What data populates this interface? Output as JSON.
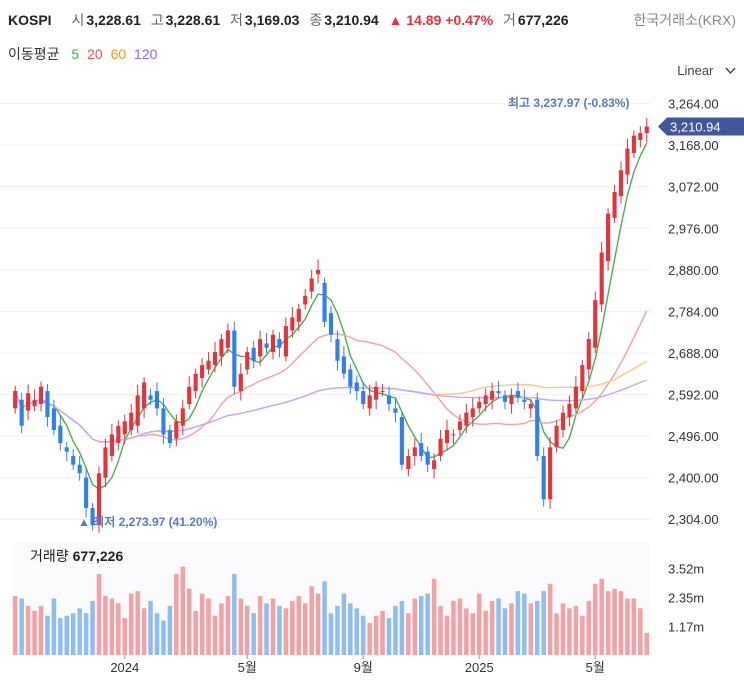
{
  "header": {
    "symbol": "KOSPI",
    "open_label": "시",
    "open": "3,228.61",
    "high_label": "고",
    "high": "3,228.61",
    "low_label": "저",
    "low": "3,169.03",
    "close_label": "종",
    "close": "3,210.94",
    "change": "▲ 14.89 +0.47%",
    "volume_label": "거",
    "volume": "677,226",
    "exchange": "한국거래소(KRX)"
  },
  "moving_average": {
    "label": "이동평균",
    "periods": [
      {
        "text": "5",
        "color": "#4caf50"
      },
      {
        "text": "20",
        "color": "#ef5350"
      },
      {
        "text": "60",
        "color": "#ff9800"
      },
      {
        "text": "120",
        "color": "#9c5ff7"
      }
    ]
  },
  "scale_mode": "Linear",
  "chart_data": {
    "type": "candlestick",
    "price_ticks": [
      "3,264.00",
      "3,168.00",
      "3,072.00",
      "2,976.00",
      "2,880.00",
      "2,784.00",
      "2,688.00",
      "2,592.00",
      "2,496.00",
      "2,400.00",
      "2,304.00"
    ],
    "price_tick_values": [
      3264,
      3168,
      3072,
      2976,
      2880,
      2784,
      2688,
      2592,
      2496,
      2400,
      2304
    ],
    "ylim": [
      2256,
      3300
    ],
    "current_price_label": "3,210.94",
    "current_price": 3210.94,
    "high_marker": "최고 3,237.97 (-0.83%)",
    "low_marker": "▲ 최저 2,273.97 (41.20%)",
    "x_labels": [
      "2024",
      "5월",
      "9월",
      "2025",
      "5월"
    ],
    "x_label_index": [
      17,
      36,
      54,
      72,
      90
    ],
    "candles_o": [
      2560,
      2580,
      2555,
      2565,
      2570,
      2600,
      2560,
      2520,
      2470,
      2450,
      2430,
      2400,
      2330,
      2290,
      2400,
      2450,
      2480,
      2500,
      2510,
      2520,
      2560,
      2590,
      2600,
      2560,
      2510,
      2490,
      2520,
      2570,
      2600,
      2630,
      2650,
      2660,
      2680,
      2700,
      2740,
      2600,
      2650,
      2700,
      2680,
      2710,
      2690,
      2720,
      2680,
      2740,
      2760,
      2800,
      2830,
      2870,
      2850,
      2780,
      2720,
      2680,
      2650,
      2620,
      2600,
      2560,
      2580,
      2600,
      2590,
      2560,
      2540,
      2420,
      2450,
      2480,
      2460,
      2420,
      2450,
      2480,
      2500,
      2510,
      2520,
      2540,
      2560,
      2570,
      2580,
      2600,
      2590,
      2570,
      2600,
      2580,
      2560,
      2580,
      2450,
      2350,
      2470,
      2510,
      2540,
      2560,
      2600,
      2650,
      2700,
      2800,
      2900,
      3000,
      3050,
      3100,
      3150,
      3180,
      3196
    ],
    "candles_c": [
      2600,
      2520,
      2595,
      2580,
      2610,
      2540,
      2510,
      2480,
      2460,
      2430,
      2410,
      2330,
      2290,
      2410,
      2470,
      2500,
      2520,
      2530,
      2550,
      2590,
      2620,
      2580,
      2560,
      2500,
      2480,
      2530,
      2560,
      2610,
      2640,
      2660,
      2670,
      2690,
      2720,
      2740,
      2610,
      2640,
      2690,
      2670,
      2720,
      2700,
      2730,
      2700,
      2750,
      2770,
      2790,
      2820,
      2860,
      2880,
      2760,
      2730,
      2670,
      2640,
      2610,
      2600,
      2570,
      2590,
      2610,
      2600,
      2570,
      2550,
      2430,
      2450,
      2470,
      2450,
      2430,
      2440,
      2490,
      2510,
      2500,
      2530,
      2550,
      2560,
      2575,
      2590,
      2600,
      2595,
      2575,
      2590,
      2585,
      2575,
      2570,
      2450,
      2350,
      2470,
      2520,
      2550,
      2570,
      2610,
      2660,
      2720,
      2810,
      2920,
      3010,
      3060,
      3110,
      3160,
      3190,
      3196,
      3210.94
    ],
    "volume_label": "거래량",
    "volume_value": "677,226",
    "volume_ticks": [
      "3.52m",
      "2.35m",
      "1.17m"
    ],
    "volume_tick_values": [
      3.52,
      2.35,
      1.17
    ],
    "volume_ylim": [
      0,
      4.6
    ],
    "volumes": [
      2.4,
      2.3,
      2.0,
      1.8,
      2.0,
      1.6,
      2.3,
      1.5,
      1.6,
      1.7,
      1.9,
      1.7,
      2.2,
      3.3,
      2.4,
      2.3,
      2.1,
      1.5,
      2.5,
      2.6,
      1.9,
      2.2,
      1.7,
      1.4,
      2.0,
      3.3,
      3.6,
      2.7,
      1.8,
      2.5,
      2.3,
      1.6,
      2.1,
      2.4,
      3.3,
      2.3,
      2.0,
      1.7,
      2.4,
      2.1,
      2.3,
      2.0,
      1.9,
      2.2,
      2.4,
      2.1,
      2.8,
      2.5,
      3.0,
      1.7,
      2.0,
      2.5,
      2.1,
      1.9,
      1.6,
      1.3,
      1.6,
      1.8,
      1.5,
      2.0,
      2.2,
      1.7,
      2.3,
      2.4,
      2.5,
      3.1,
      2.0,
      1.6,
      2.2,
      2.3,
      1.9,
      1.7,
      2.5,
      1.8,
      2.2,
      2.3,
      1.9,
      2.1,
      2.6,
      2.5,
      2.1,
      2.2,
      2.6,
      2.9,
      1.7,
      2.1,
      1.9,
      2.0,
      1.6,
      2.2,
      2.9,
      3.1,
      2.6,
      2.7,
      2.6,
      2.3,
      2.3,
      1.9,
      0.9
    ]
  }
}
